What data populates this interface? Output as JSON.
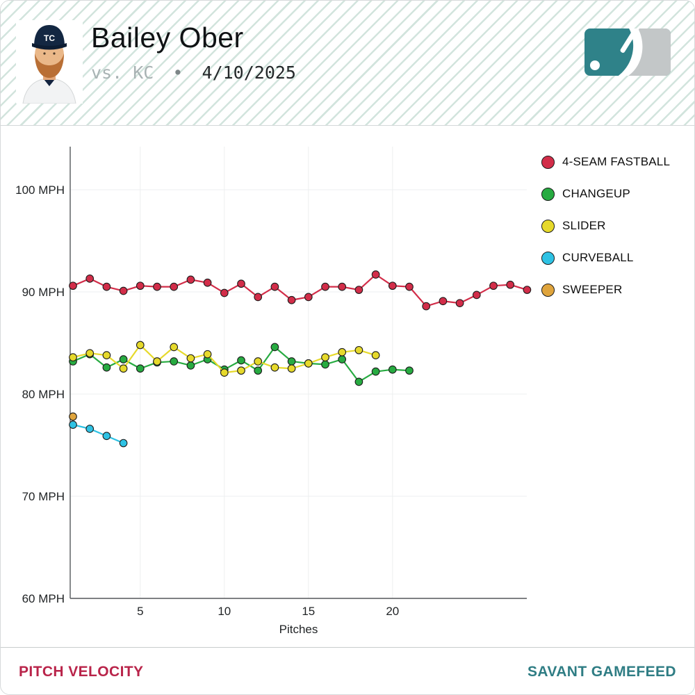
{
  "header": {
    "player_name": "Bailey Ober",
    "matchup": {
      "vs_label": "vs.",
      "opponent": "KC",
      "separator": "•",
      "date": "4/10/2025"
    }
  },
  "colors": {
    "header_stripe": "#d2e4dd",
    "footer_left": "#b9244a",
    "footer_right": "#2f7d84",
    "axis_spine": "#54575a",
    "gridline": "#eceff0"
  },
  "chart_data": {
    "type": "line",
    "title": "",
    "xlabel": "Pitches",
    "ylabel": "",
    "ylim": [
      60,
      103
    ],
    "yticks": [
      100,
      90,
      80,
      70,
      60
    ],
    "ytick_label_suffix": " MPH",
    "xticks": [
      5,
      10,
      15,
      20
    ],
    "x_range": [
      1,
      28
    ],
    "grid": true,
    "legend_position": "right",
    "series": [
      {
        "id": "four-seam-fastball",
        "name": "4-SEAM FASTBALL",
        "color": "#d22d49",
        "x": [
          1,
          2,
          3,
          4,
          5,
          6,
          7,
          8,
          9,
          10,
          11,
          12,
          13,
          14,
          15,
          16,
          17,
          18,
          19,
          20,
          21,
          22,
          23,
          24,
          25,
          26,
          27,
          28
        ],
        "y": [
          90.6,
          91.3,
          90.5,
          90.1,
          90.6,
          90.5,
          90.5,
          91.2,
          90.9,
          89.9,
          90.8,
          89.5,
          90.5,
          89.2,
          89.5,
          90.5,
          90.5,
          90.2,
          91.7,
          90.6,
          90.5,
          88.6,
          89.1,
          88.9,
          89.7,
          90.6,
          90.7,
          90.2
        ]
      },
      {
        "id": "changeup",
        "name": "CHANGEUP",
        "color": "#27ab41",
        "x": [
          1,
          2,
          3,
          4,
          5,
          6,
          7,
          8,
          9,
          10,
          11,
          12,
          13,
          14,
          15,
          16,
          17,
          18,
          19,
          20,
          21
        ],
        "y": [
          83.2,
          83.9,
          82.6,
          83.4,
          82.5,
          83.1,
          83.2,
          82.8,
          83.4,
          82.4,
          83.3,
          82.3,
          84.6,
          83.2,
          83.0,
          82.9,
          83.4,
          81.2,
          82.2,
          82.4,
          82.3
        ]
      },
      {
        "id": "slider",
        "name": "SLIDER",
        "color": "#e6d92b",
        "x": [
          1,
          2,
          3,
          4,
          5,
          6,
          7,
          8,
          9,
          10,
          11,
          12,
          13,
          14,
          15,
          16,
          17,
          18,
          19
        ],
        "y": [
          83.6,
          84.0,
          83.8,
          82.5,
          84.8,
          83.2,
          84.6,
          83.5,
          83.9,
          82.1,
          82.3,
          83.2,
          82.6,
          82.5,
          83.0,
          83.6,
          84.1,
          84.3,
          83.8
        ]
      },
      {
        "id": "curveball",
        "name": "CURVEBALL",
        "color": "#2ec2e4",
        "x": [
          1,
          2,
          3,
          4
        ],
        "y": [
          77.0,
          76.6,
          75.9,
          75.2
        ]
      },
      {
        "id": "sweeper",
        "name": "SWEEPER",
        "color": "#dfa43c",
        "x": [
          1
        ],
        "y": [
          77.8
        ]
      }
    ]
  },
  "footer": {
    "left_label": "PITCH VELOCITY",
    "right_label": "SAVANT GAMEFEED"
  }
}
